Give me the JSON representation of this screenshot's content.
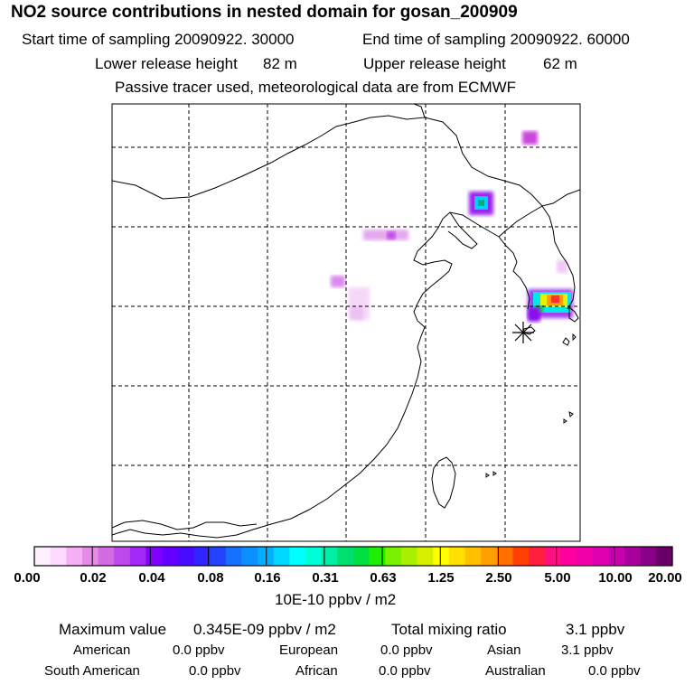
{
  "header": {
    "title": "NO2 source contributions in nested domain for gosan_200909",
    "start_label": "Start time of sampling 20090922. 30000",
    "end_label": "End time of sampling 20090922. 60000",
    "lower_label": "Lower release height",
    "lower_value": "82 m",
    "upper_label": "Upper release height",
    "upper_value": "62 m",
    "tracer_note": "Passive tracer used, meteorological data are from ECMWF"
  },
  "colorbar": {
    "colors": [
      "#fff0ff",
      "#ffd8ff",
      "#f5b0f5",
      "#e88ae8",
      "#d36ce0",
      "#bd48eb",
      "#a128f5",
      "#8000ff",
      "#6400ff",
      "#4a0aff",
      "#3024ff",
      "#2244ff",
      "#1870ff",
      "#0a90ff",
      "#00b0ff",
      "#00d8ff",
      "#00ffff",
      "#00ffd8",
      "#00f0a8",
      "#00e070",
      "#00e040",
      "#20f000",
      "#78f000",
      "#a8f000",
      "#d8f000",
      "#ffff00",
      "#ffe000",
      "#ffc000",
      "#ffa000",
      "#ff7000",
      "#ff4000",
      "#ff2040",
      "#ff1080",
      "#ff00a0",
      "#f000a8",
      "#e000b0",
      "#c800b0",
      "#a8009c",
      "#880088",
      "#660066"
    ],
    "tick_labels": [
      "0.00",
      "0.02",
      "0.04",
      "0.08",
      "0.16",
      "0.31",
      "0.63",
      "1.25",
      "2.50",
      "5.00",
      "10.00",
      "20.00"
    ],
    "units": "10E-10 ppbv / m2"
  },
  "stats": {
    "max_label": "Maximum value",
    "max_value": "0.345E-09 ppbv / m2",
    "total_label": "Total mixing ratio",
    "total_value": "3.1 ppbv"
  },
  "regions": [
    {
      "name": "American",
      "value": "0.0 ppbv"
    },
    {
      "name": "European",
      "value": "0.0 ppbv"
    },
    {
      "name": "Asian",
      "value": "3.1 ppbv"
    },
    {
      "name": "South American",
      "value": "0.0 ppbv"
    },
    {
      "name": "African",
      "value": "0.0 ppbv"
    },
    {
      "name": "Australian",
      "value": "0.0 ppbv"
    }
  ],
  "colors": {
    "grid": "#000000",
    "coast": "#000000"
  }
}
